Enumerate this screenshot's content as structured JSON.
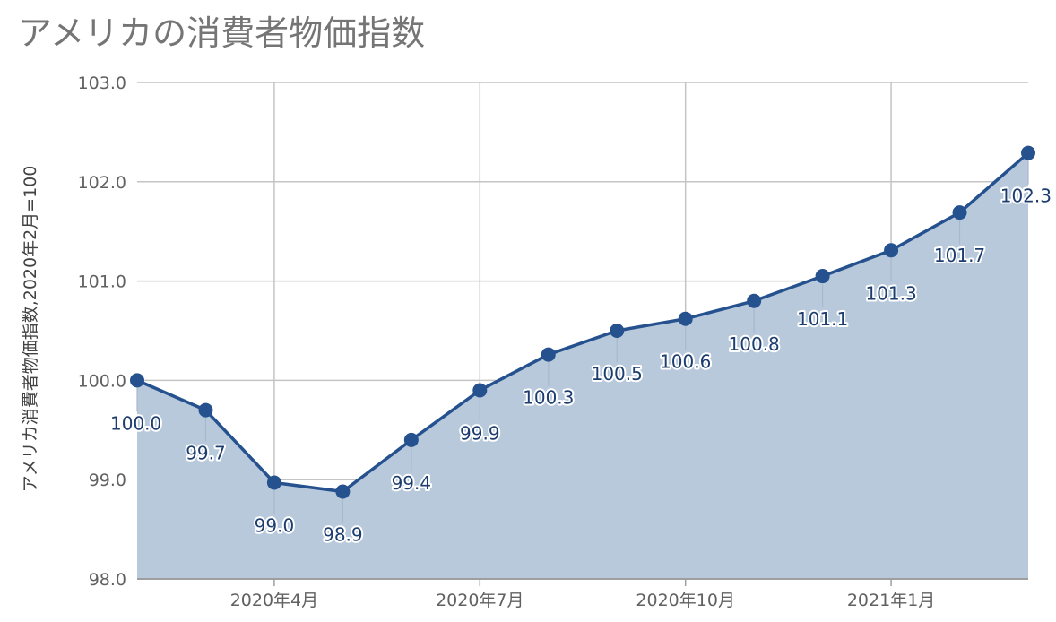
{
  "chart_data": {
    "type": "area",
    "title": "アメリカの消費者物価指数",
    "ylabel": "アメリカ消費者物価指数,2020年2月=100",
    "xlabel": "",
    "ylim": [
      98.0,
      103.0
    ],
    "y_ticks": [
      "98.0",
      "99.0",
      "100.0",
      "101.0",
      "102.0",
      "103.0"
    ],
    "x_ticks": [
      {
        "label": "2020年4月",
        "index": 2
      },
      {
        "label": "2020年7月",
        "index": 5
      },
      {
        "label": "2020年10月",
        "index": 8
      },
      {
        "label": "2021年1月",
        "index": 11
      }
    ],
    "grid": true,
    "series": [
      {
        "x": [
          "2020-02",
          "2020-03",
          "2020-04",
          "2020-05",
          "2020-06",
          "2020-07",
          "2020-08",
          "2020-09",
          "2020-10",
          "2020-11",
          "2020-12",
          "2021-01",
          "2021-02",
          "2021-03"
        ],
        "values": [
          100.0,
          99.7,
          98.97,
          98.88,
          99.4,
          99.9,
          100.26,
          100.5,
          100.62,
          100.8,
          101.05,
          101.31,
          101.69,
          102.29
        ],
        "labels": [
          "100.0",
          "99.7",
          "99.0",
          "98.9",
          "99.4",
          "99.9",
          "100.3",
          "100.5",
          "100.6",
          "100.8",
          "101.1",
          "101.3",
          "101.7",
          "102.3"
        ],
        "color": "#25518f",
        "fill": "#b8c9dc"
      }
    ]
  }
}
